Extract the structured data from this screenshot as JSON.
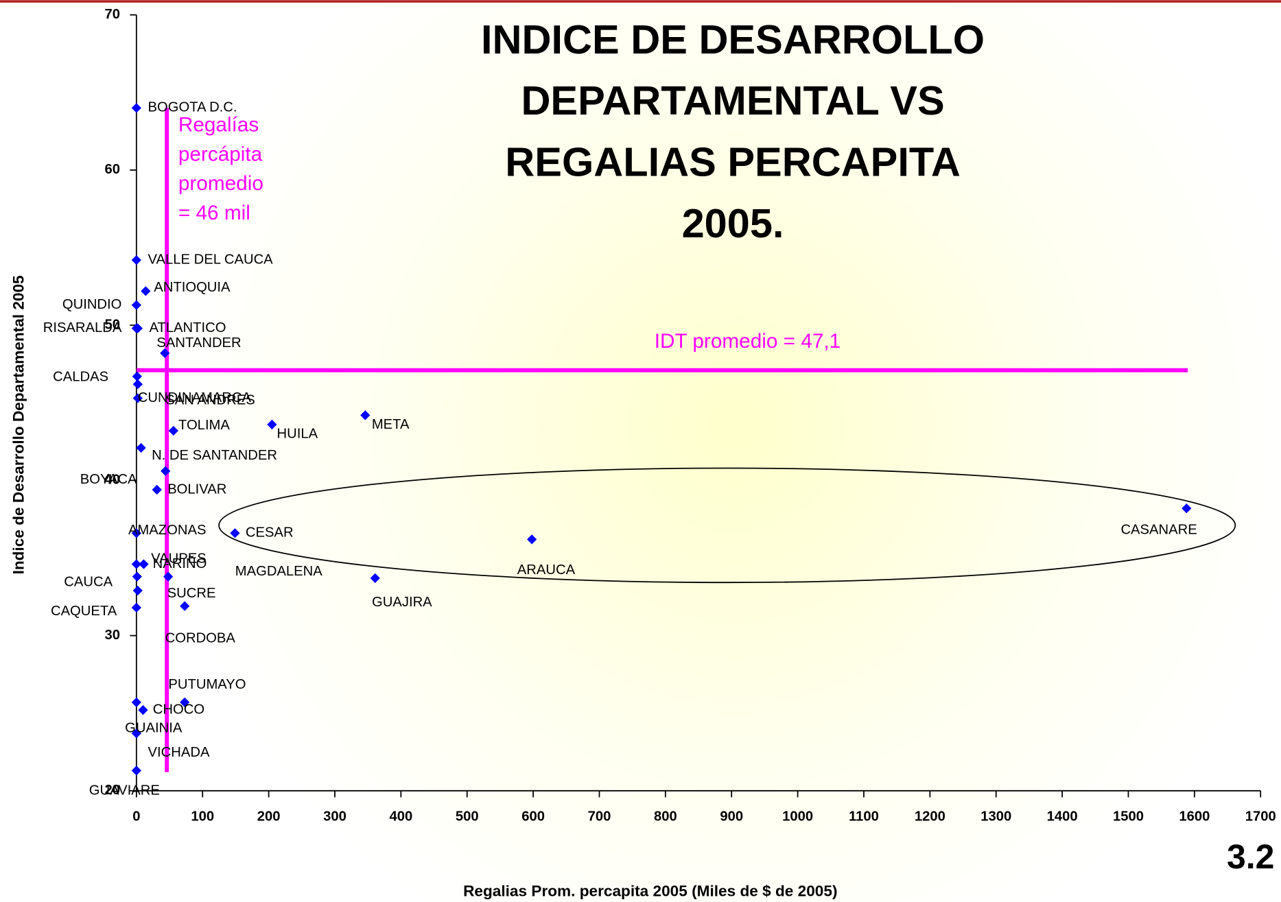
{
  "chart_data": {
    "type": "scatter",
    "title": [
      "INDICE DE DESARROLLO",
      "DEPARTAMENTAL VS",
      "REGALIAS PERCAPITA",
      "2005."
    ],
    "x_label": "Regalias Prom. percapita 2005 (Miles de $ de 2005)",
    "y_label": "Indice de Desarrollo Departamental 2005",
    "page_number": "3.2",
    "color": "#0000ff",
    "xlim": [
      0,
      1700
    ],
    "xticks": [
      0,
      100,
      200,
      300,
      400,
      500,
      600,
      700,
      800,
      900,
      1000,
      1100,
      1200,
      1300,
      1400,
      1500,
      1600,
      1700
    ],
    "ylim": [
      20,
      70
    ],
    "yticks": [
      20,
      30,
      40,
      50,
      60,
      70
    ],
    "point_labels": [
      "BOGOTA D.C.",
      "VALLE DEL CAUCA",
      "ANTIOQUIA",
      "QUINDIO",
      "RISARALDA",
      "ATLANTICO",
      "SANTANDER",
      "CALDAS",
      "SAN ANDRES",
      "CUNDINAMARCA",
      "TOLIMA",
      "HUILA",
      "META",
      "N. DE SANTANDER",
      "BOYACA",
      "BOLIVAR",
      "CASANARE",
      "AMAZONAS",
      "CESAR",
      "ARAUCA",
      "VAUPES",
      "NARIÑO",
      "MAGDALENA",
      "CAUCA",
      "GUAJIRA",
      "SUCRE",
      "CAQUETA",
      "CORDOBA",
      "PUTUMAYO",
      "CHOCO",
      "VICHADA",
      "GUAINIA",
      "GUAVIARE"
    ],
    "x": [
      0,
      0,
      14,
      0,
      0,
      2,
      43,
      1,
      2,
      2,
      56,
      205,
      346,
      7,
      44,
      31,
      1588,
      0,
      149,
      598,
      11,
      0,
      48,
      1,
      361,
      2,
      0,
      73,
      73,
      10,
      0,
      0,
      0
    ],
    "values": [
      64.0,
      54.2,
      52.2,
      51.3,
      49.8,
      49.8,
      48.2,
      46.7,
      46.2,
      45.3,
      43.2,
      43.6,
      44.2,
      42.1,
      40.6,
      39.4,
      38.2,
      36.6,
      36.6,
      36.2,
      34.6,
      34.6,
      33.8,
      33.8,
      33.7,
      32.9,
      31.8,
      31.9,
      25.7,
      25.2,
      25.7,
      23.7,
      21.3
    ],
    "annotations": [
      {
        "text": [
          "Regalías",
          "percápita",
          "promedio",
          "= 46 mil"
        ],
        "x": 46
      },
      {
        "text": "IDT promedio = 47,1",
        "y": 47.1
      }
    ]
  }
}
